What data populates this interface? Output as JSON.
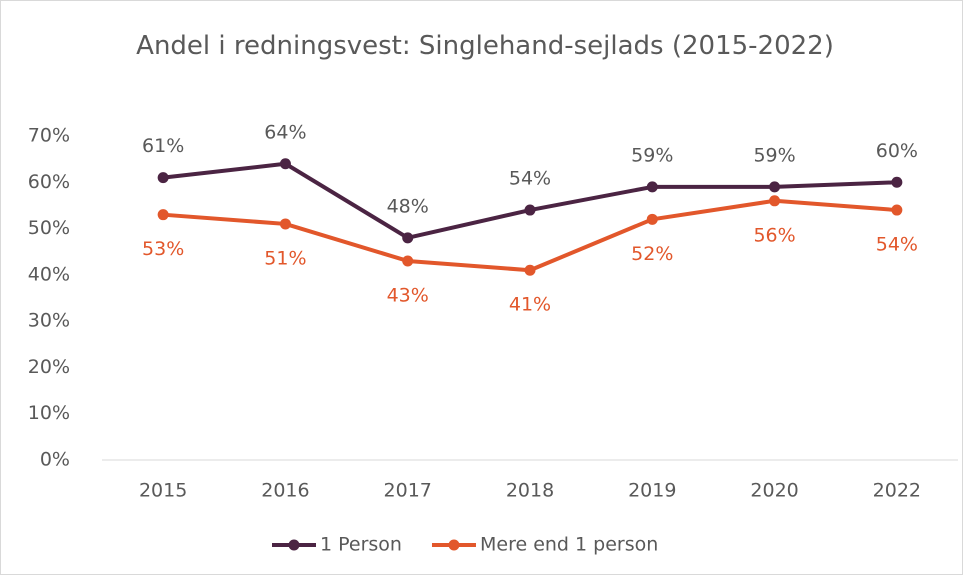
{
  "chart_data": {
    "type": "line",
    "title": "Andel i redningsvest: Singlehand-sejlads (2015-2022)",
    "categories": [
      "2015",
      "2016",
      "2017",
      "2018",
      "2019",
      "2020",
      "2022"
    ],
    "series": [
      {
        "name": "1 Person",
        "color": "#4b2443",
        "values": [
          61,
          64,
          48,
          54,
          59,
          59,
          60
        ],
        "value_labels": [
          "61%",
          "64%",
          "48%",
          "54%",
          "59%",
          "59%",
          "60%"
        ]
      },
      {
        "name": "Mere end 1 person",
        "color": "#e2572b",
        "values": [
          53,
          51,
          43,
          41,
          52,
          56,
          54
        ],
        "value_labels": [
          "53%",
          "51%",
          "43%",
          "41%",
          "52%",
          "56%",
          "54%"
        ]
      }
    ],
    "ylim": [
      0,
      70
    ],
    "yticks": [
      {
        "value": 0,
        "label": "0%"
      },
      {
        "value": 10,
        "label": "10%"
      },
      {
        "value": 20,
        "label": "20%"
      },
      {
        "value": 30,
        "label": "30%"
      },
      {
        "value": 40,
        "label": "40%"
      },
      {
        "value": 50,
        "label": "50%"
      },
      {
        "value": 60,
        "label": "60%"
      },
      {
        "value": 70,
        "label": "70%"
      }
    ],
    "legend": "bottom"
  }
}
